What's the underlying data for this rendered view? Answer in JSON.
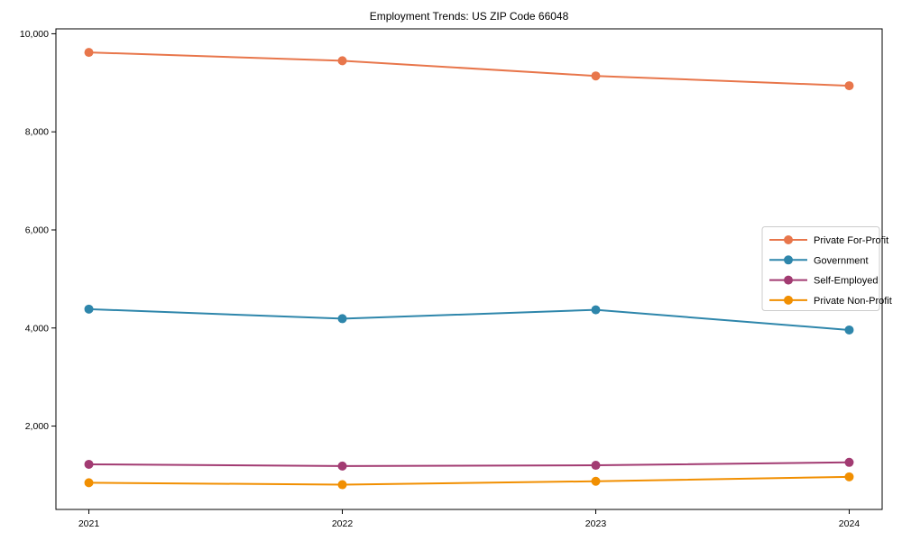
{
  "chart_data": {
    "type": "line",
    "title": "Employment Trends: US ZIP Code 66048",
    "x": [
      2021,
      2022,
      2023,
      2024
    ],
    "x_tick_labels": [
      "2021",
      "2022",
      "2023",
      "2024"
    ],
    "series": [
      {
        "name": "Private For-Profit",
        "color": "#E8764B",
        "values": [
          9620,
          9450,
          9140,
          8940
        ]
      },
      {
        "name": "Government",
        "color": "#2E86AB",
        "values": [
          4385,
          4190,
          4370,
          3960
        ]
      },
      {
        "name": "Self-Employed",
        "color": "#A23B72",
        "values": [
          1220,
          1185,
          1200,
          1260
        ]
      },
      {
        "name": "Private Non-Profit",
        "color": "#F18F01",
        "values": [
          845,
          805,
          875,
          965
        ]
      }
    ],
    "y_ticks": [
      2000,
      4000,
      6000,
      8000,
      10000
    ],
    "y_tick_labels": [
      "2,000",
      "4,000",
      "6,000",
      "8,000",
      "10,000"
    ],
    "ylim": [
      300,
      10100
    ],
    "xlim": [
      2020.87,
      2024.13
    ],
    "xlabel": "",
    "ylabel": "",
    "grid": false,
    "legend_position": "center right",
    "axis_color": "#000000",
    "background_color": "#ffffff",
    "legend_border_color": "#cccccc"
  }
}
